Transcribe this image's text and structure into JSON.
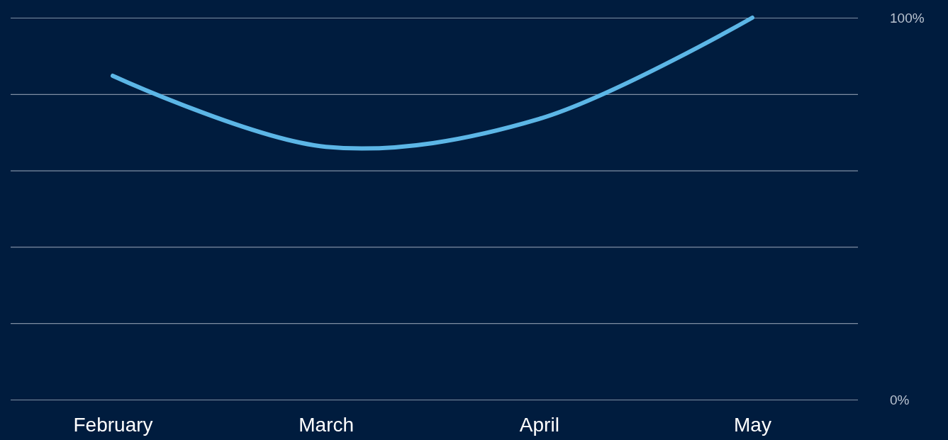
{
  "chart_data": {
    "type": "line",
    "categories": [
      "February",
      "March",
      "April",
      "May"
    ],
    "series": [
      {
        "color": "#5cb6e6",
        "values": [
          84.8,
          66.2,
          73.5,
          100
        ]
      }
    ],
    "ylim": [
      0,
      100
    ],
    "yticks": [
      {
        "value": 0,
        "label": "0%"
      },
      {
        "value": 20,
        "label": null
      },
      {
        "value": 40,
        "label": null
      },
      {
        "value": 60,
        "label": null
      },
      {
        "value": 80,
        "label": null
      },
      {
        "value": 100,
        "label": "100%"
      }
    ],
    "grid": "y",
    "marker": "none"
  }
}
